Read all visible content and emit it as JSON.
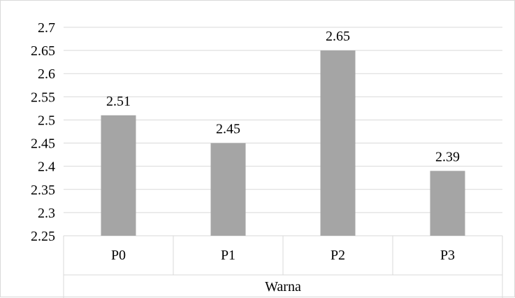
{
  "chart_data": {
    "type": "bar",
    "categories": [
      "P0",
      "P1",
      "P2",
      "P3"
    ],
    "values": [
      2.51,
      2.45,
      2.65,
      2.39
    ],
    "data_labels": [
      "2.51",
      "2.45",
      "2.65",
      "2.39"
    ],
    "group_label": "Warna",
    "yticks": [
      "2.7",
      "2.65",
      "2.6",
      "2.55",
      "2.5",
      "2.45",
      "2.4",
      "2.35",
      "2.3",
      "2.25"
    ],
    "ylim": [
      2.25,
      2.7
    ],
    "ystep": 0.05,
    "grid": true,
    "legend": "none",
    "colors": {
      "bar": "#a5a5a5",
      "grid": "#d9d9d9",
      "axis": "#d9d9d9"
    }
  }
}
